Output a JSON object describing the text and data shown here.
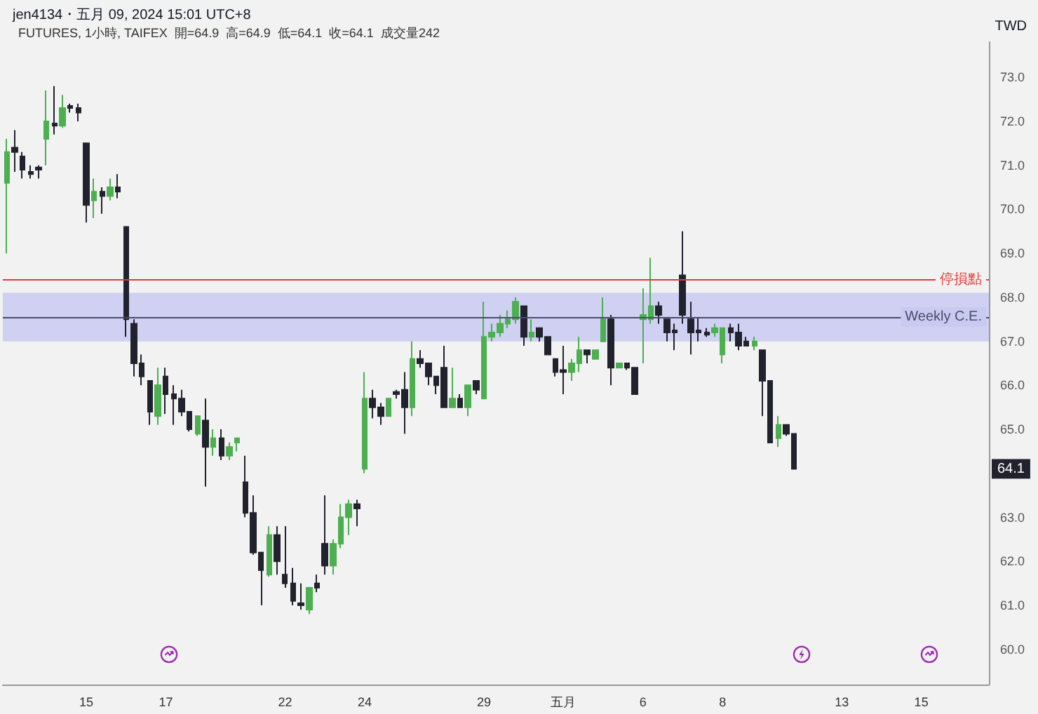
{
  "chart_data": {
    "type": "candlestick",
    "title": "jen4134・五月 09, 2024 15:01 UTC+8",
    "subtitle": "FUTURES, 1小時, TAIFEX  開=64.9  高=64.9  低=64.1  收=64.1  成交量242",
    "categories": [
      null,
      null,
      null,
      null,
      null,
      null,
      null,
      null,
      null,
      null,
      "15",
      null,
      null,
      null,
      null,
      null,
      null,
      null,
      null,
      null,
      "17",
      null,
      null,
      null,
      null,
      null,
      null,
      null,
      null,
      null,
      null,
      null,
      null,
      null,
      null,
      "22",
      null,
      null,
      null,
      null,
      null,
      null,
      null,
      null,
      null,
      "24",
      null,
      null,
      null,
      null,
      null,
      null,
      null,
      null,
      null,
      null,
      null,
      null,
      null,
      null,
      "29",
      null,
      null,
      null,
      null,
      null,
      null,
      null,
      null,
      null,
      "五月",
      null,
      null,
      null,
      null,
      null,
      null,
      null,
      null,
      null,
      "6",
      null,
      null,
      null,
      null,
      null,
      null,
      null,
      null,
      null,
      "8",
      null,
      null,
      null,
      null,
      null,
      null,
      null,
      null,
      null,
      null,
      null,
      null,
      null,
      null,
      "13",
      null,
      null,
      null,
      null,
      null,
      null,
      null,
      null,
      null,
      "15",
      null,
      null,
      null,
      null,
      null,
      null,
      null,
      null
    ],
    "ohlc": [
      [
        70.6,
        71.6,
        69.0,
        71.3
      ],
      [
        71.4,
        71.8,
        70.85,
        71.3
      ],
      [
        71.2,
        71.3,
        70.7,
        70.9
      ],
      [
        70.85,
        71.0,
        70.7,
        70.8
      ],
      [
        70.95,
        71.0,
        70.7,
        70.9
      ],
      [
        71.6,
        72.7,
        71.0,
        72.0
      ],
      [
        71.95,
        72.8,
        71.7,
        71.9
      ],
      [
        71.9,
        72.6,
        71.85,
        72.3
      ],
      [
        72.35,
        72.4,
        72.2,
        72.3
      ],
      [
        72.3,
        72.4,
        72.0,
        72.2
      ],
      [
        71.5,
        71.5,
        69.7,
        70.1
      ],
      [
        70.2,
        70.7,
        69.8,
        70.4
      ],
      [
        70.4,
        70.5,
        69.9,
        70.3
      ],
      [
        70.3,
        70.7,
        70.2,
        70.5
      ],
      [
        70.5,
        70.8,
        70.25,
        70.4
      ],
      [
        69.6,
        69.6,
        67.1,
        67.5
      ],
      [
        67.4,
        67.5,
        66.2,
        66.5
      ],
      [
        66.5,
        66.7,
        66.0,
        66.2
      ],
      [
        66.1,
        66.1,
        65.1,
        65.4
      ],
      [
        65.3,
        66.4,
        65.1,
        66.0
      ],
      [
        66.2,
        66.4,
        65.35,
        65.8
      ],
      [
        65.8,
        66.0,
        65.1,
        65.7
      ],
      [
        65.7,
        65.9,
        65.3,
        65.4
      ],
      [
        65.4,
        65.4,
        64.95,
        65.0
      ],
      [
        64.9,
        65.3,
        64.85,
        65.3
      ],
      [
        65.2,
        65.7,
        63.7,
        64.6
      ],
      [
        64.6,
        65.0,
        64.4,
        64.8
      ],
      [
        64.8,
        65.0,
        64.3,
        64.4
      ],
      [
        64.4,
        64.7,
        64.3,
        64.6
      ],
      [
        64.7,
        64.8,
        64.5,
        64.8
      ],
      [
        63.8,
        64.4,
        63.0,
        63.1
      ],
      [
        63.1,
        63.5,
        62.15,
        62.2
      ],
      [
        62.2,
        62.2,
        61.0,
        61.8
      ],
      [
        61.7,
        62.8,
        61.65,
        62.6
      ],
      [
        62.6,
        62.8,
        61.7,
        62.0
      ],
      [
        61.7,
        62.8,
        61.4,
        61.5
      ],
      [
        61.5,
        61.85,
        61.0,
        61.1
      ],
      [
        61.05,
        61.5,
        60.9,
        61.0
      ],
      [
        60.9,
        61.4,
        60.8,
        61.4
      ],
      [
        61.5,
        61.7,
        61.3,
        61.4
      ],
      [
        62.4,
        63.5,
        61.7,
        61.9
      ],
      [
        61.9,
        62.5,
        61.7,
        62.4
      ],
      [
        62.4,
        63.3,
        62.3,
        63.0
      ],
      [
        63.0,
        63.4,
        62.6,
        63.3
      ],
      [
        63.3,
        63.4,
        62.8,
        63.2
      ],
      [
        64.1,
        66.3,
        64.0,
        65.7
      ],
      [
        65.7,
        65.9,
        65.25,
        65.5
      ],
      [
        65.5,
        65.6,
        65.1,
        65.3
      ],
      [
        65.3,
        65.7,
        65.3,
        65.7
      ],
      [
        65.85,
        65.9,
        65.7,
        65.8
      ],
      [
        65.9,
        66.3,
        64.9,
        65.5
      ],
      [
        65.5,
        67.0,
        65.3,
        66.6
      ],
      [
        66.6,
        66.8,
        66.4,
        66.5
      ],
      [
        66.5,
        66.5,
        66.0,
        66.2
      ],
      [
        66.2,
        66.2,
        65.8,
        66.0
      ],
      [
        66.4,
        66.9,
        65.5,
        65.5
      ],
      [
        65.5,
        66.4,
        65.5,
        65.7
      ],
      [
        65.7,
        65.8,
        65.5,
        65.5
      ],
      [
        65.5,
        66.0,
        65.3,
        66.0
      ],
      [
        66.1,
        66.1,
        65.8,
        65.9
      ],
      [
        65.7,
        67.9,
        65.7,
        67.1
      ],
      [
        67.1,
        67.4,
        67.0,
        67.2
      ],
      [
        67.2,
        67.6,
        67.1,
        67.4
      ],
      [
        67.4,
        67.7,
        67.3,
        67.5
      ],
      [
        67.5,
        68.0,
        67.4,
        67.9
      ],
      [
        67.8,
        67.8,
        66.9,
        67.1
      ],
      [
        67.1,
        67.5,
        67.0,
        67.2
      ],
      [
        67.3,
        67.3,
        67.0,
        67.1
      ],
      [
        67.1,
        67.1,
        66.7,
        66.7
      ],
      [
        66.6,
        66.6,
        66.2,
        66.3
      ],
      [
        66.35,
        66.9,
        65.8,
        66.3
      ],
      [
        66.3,
        66.6,
        66.1,
        66.5
      ],
      [
        66.5,
        67.1,
        66.3,
        66.8
      ],
      [
        66.8,
        66.8,
        66.5,
        66.7
      ],
      [
        66.6,
        66.8,
        66.6,
        66.8
      ],
      [
        67.0,
        68.0,
        67.0,
        67.5
      ],
      [
        67.5,
        67.6,
        66.0,
        66.4
      ],
      [
        66.4,
        66.5,
        66.4,
        66.5
      ],
      [
        66.5,
        66.5,
        66.35,
        66.4
      ],
      [
        66.4,
        66.4,
        65.8,
        65.8
      ],
      [
        67.5,
        68.2,
        66.5,
        67.6
      ],
      [
        67.5,
        68.9,
        67.4,
        67.8
      ],
      [
        67.8,
        67.9,
        67.4,
        67.6
      ],
      [
        67.5,
        67.5,
        67.0,
        67.2
      ],
      [
        67.25,
        67.4,
        66.8,
        67.2
      ],
      [
        68.5,
        69.5,
        67.4,
        67.6
      ],
      [
        67.5,
        67.9,
        66.7,
        67.2
      ],
      [
        67.25,
        67.55,
        67.0,
        67.2
      ],
      [
        67.2,
        67.3,
        67.1,
        67.15
      ],
      [
        67.2,
        67.4,
        67.1,
        67.3
      ],
      [
        66.7,
        67.3,
        66.5,
        67.3
      ],
      [
        67.3,
        67.4,
        67.0,
        67.2
      ],
      [
        67.2,
        67.4,
        66.8,
        66.9
      ],
      [
        67.0,
        67.1,
        66.9,
        66.9
      ],
      [
        66.9,
        67.1,
        66.8,
        67.0
      ],
      [
        66.8,
        66.8,
        65.3,
        66.1
      ],
      [
        66.1,
        66.1,
        64.7,
        64.7
      ],
      [
        64.8,
        65.3,
        64.6,
        65.1
      ],
      [
        65.1,
        65.1,
        64.85,
        64.9
      ],
      [
        64.9,
        64.9,
        64.1,
        64.1
      ],
      null,
      null,
      null,
      null,
      null,
      null,
      null,
      null,
      null,
      null,
      null,
      null,
      null,
      null,
      null,
      null,
      null,
      null,
      null,
      null,
      null,
      null,
      null,
      null
    ],
    "colors": [
      "#4caf50",
      "#22222e",
      "#22222e",
      "#22222e",
      "#22222e",
      "#4caf50",
      "#22222e",
      "#4caf50",
      "#22222e",
      "#22222e",
      "#22222e",
      "#4caf50",
      "#22222e",
      "#4caf50",
      "#22222e",
      "#22222e",
      "#22222e",
      "#22222e",
      "#22222e",
      "#4caf50",
      "#22222e",
      "#22222e",
      "#22222e",
      "#22222e",
      "#4caf50",
      "#22222e",
      "#4caf50",
      "#22222e",
      "#4caf50",
      "#4caf50",
      "#22222e",
      "#22222e",
      "#22222e",
      "#4caf50",
      "#22222e",
      "#22222e",
      "#22222e",
      "#22222e",
      "#4caf50",
      "#22222e",
      "#22222e",
      "#4caf50",
      "#4caf50",
      "#4caf50",
      "#22222e",
      "#4caf50",
      "#22222e",
      "#22222e",
      "#4caf50",
      "#22222e",
      "#22222e",
      "#4caf50",
      "#22222e",
      "#22222e",
      "#22222e",
      "#22222e",
      "#4caf50",
      "#22222e",
      "#4caf50",
      "#22222e",
      "#4caf50",
      "#4caf50",
      "#4caf50",
      "#4caf50",
      "#4caf50",
      "#22222e",
      "#4caf50",
      "#22222e",
      "#22222e",
      "#22222e",
      "#22222e",
      "#4caf50",
      "#4caf50",
      "#22222e",
      "#4caf50",
      "#4caf50",
      "#22222e",
      "#4caf50",
      "#22222e",
      "#22222e",
      "#4caf50",
      "#4caf50",
      "#22222e",
      "#22222e",
      "#22222e",
      "#22222e",
      "#22222e",
      "#22222e",
      "#22222e",
      "#4caf50",
      "#4caf50",
      "#22222e",
      "#22222e",
      "#22222e",
      "#4caf50",
      "#22222e",
      "#22222e",
      "#4caf50",
      "#22222e",
      "#22222e",
      null,
      null,
      null,
      null,
      null,
      null,
      null,
      null,
      null,
      null,
      null,
      null,
      null,
      null,
      null,
      null,
      null,
      null,
      null,
      null,
      null,
      null,
      null,
      null
    ],
    "ylim": [
      59.2,
      73.8
    ],
    "yticks": [
      {
        "value": 60,
        "label": "60.0"
      },
      {
        "value": 61,
        "label": "61.0"
      },
      {
        "value": 62,
        "label": "62.0"
      },
      {
        "value": 63,
        "label": "63.0"
      },
      {
        "value": 65,
        "label": "65.0"
      },
      {
        "value": 66,
        "label": "66.0"
      },
      {
        "value": 67,
        "label": "67.0"
      },
      {
        "value": 68,
        "label": "68.0"
      },
      {
        "value": 69,
        "label": "69.0"
      },
      {
        "value": 70,
        "label": "70.0"
      },
      {
        "value": 71,
        "label": "71.0"
      },
      {
        "value": 72,
        "label": "72.0"
      },
      {
        "value": 73,
        "label": "73.0"
      }
    ],
    "grid": false,
    "ref_lines": [
      {
        "axis": "y",
        "value": 68.4,
        "label": "停損點",
        "color": "#e53935"
      },
      {
        "axis": "y",
        "value": 67.55,
        "label": "Weekly C.E.",
        "color": "#4a4c68"
      }
    ],
    "bands": [
      {
        "axis": "y",
        "from": 67.0,
        "to": 68.1,
        "color": "#c9caf2"
      }
    ],
    "annotations": [
      "TWD",
      {
        "text": "64.1",
        "y": 64.1
      }
    ]
  }
}
